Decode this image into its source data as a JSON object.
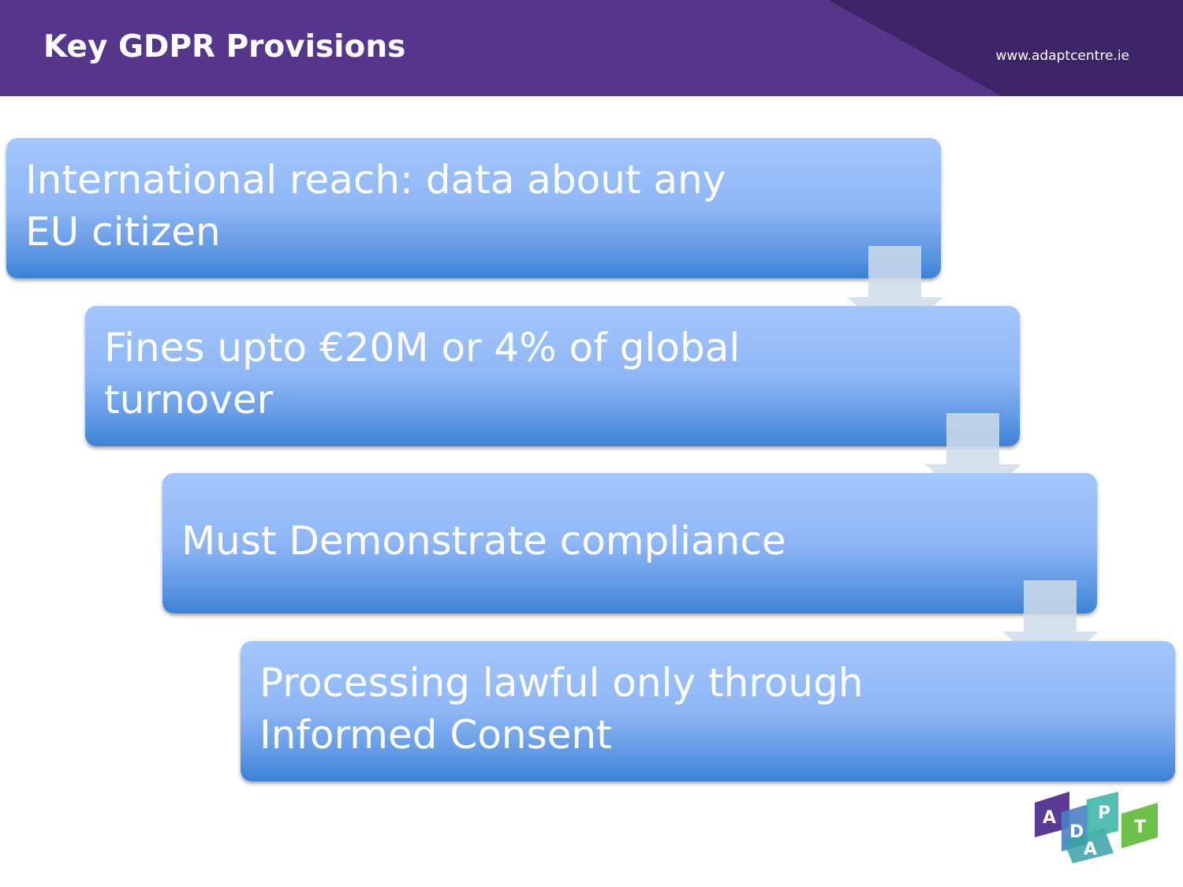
{
  "header": {
    "title": "Key GDPR Provisions",
    "url": "www.adaptcentre.ie"
  },
  "steps": [
    {
      "label": "International reach: data about any EU citizen"
    },
    {
      "label": "Fines upto €20M or 4% of global turnover"
    },
    {
      "label": "Must Demonstrate compliance"
    },
    {
      "label": "Processing lawful only through Informed Consent"
    }
  ],
  "logo": {
    "letters": [
      "A",
      "D",
      "A",
      "P",
      "T"
    ]
  },
  "colors": {
    "header_bg": "#56368a",
    "header_accent": "#3d2466",
    "step_top": "#a3c7fd",
    "step_bottom": "#3c82d6",
    "arrow": "#d0dcec"
  }
}
